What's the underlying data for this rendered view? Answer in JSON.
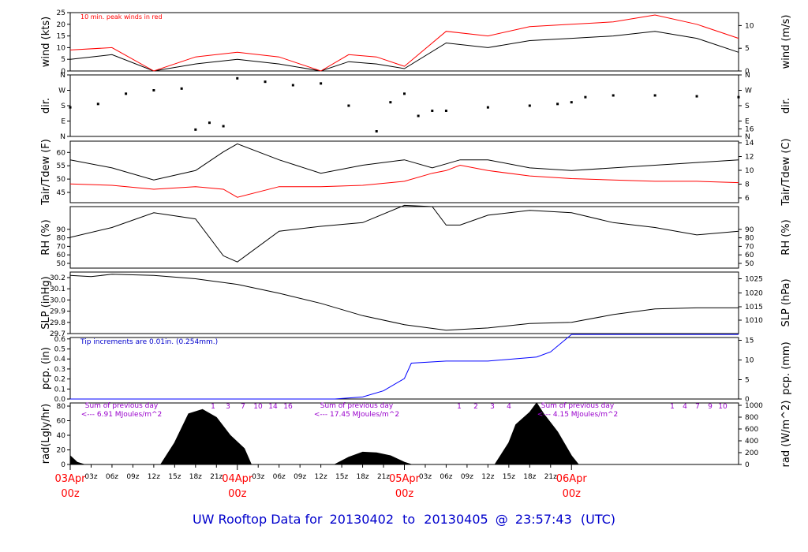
{
  "footer": {
    "prefix": "UW Rooftop Data for",
    "start": "20130402",
    "to": "to",
    "end": "20130405",
    "at": "@",
    "time": "23:57:43",
    "tz": "(UTC)",
    "color": "#0000cc"
  },
  "x_axis": {
    "hour_ticks": [
      "03z",
      "06z",
      "09z",
      "12z",
      "15z",
      "18z",
      "21z",
      "03z",
      "06z",
      "09z",
      "12z",
      "15z",
      "18z",
      "21z",
      "03z",
      "06z",
      "09z",
      "12z",
      "15z",
      "18z",
      "21z"
    ],
    "date_ticks": [
      {
        "date": "03Apr",
        "hour": "00z"
      },
      {
        "date": "04Apr",
        "hour": "00z"
      },
      {
        "date": "05Apr",
        "hour": "00z"
      },
      {
        "date": "06Apr",
        "hour": "00z"
      }
    ],
    "date_color": "#ff0000"
  },
  "chart_data": [
    {
      "id": "wind",
      "type": "line",
      "ylabel_left": "wind (kts)",
      "ylabel_right": "wind (m/s)",
      "ylim": [
        0,
        25
      ],
      "yticks_left": [
        "0",
        "5",
        "10",
        "15",
        "20",
        "25"
      ],
      "ylim_right": [
        0,
        12.86
      ],
      "yticks_right": [
        "0",
        "5",
        "10"
      ],
      "annotation": "10 min. peak winds in red",
      "series": [
        {
          "name": "wind",
          "color": "#000000",
          "x_hours": [
            0,
            6,
            12,
            18,
            24,
            30,
            36,
            40,
            44,
            48,
            54,
            60,
            66,
            72,
            78,
            84,
            90,
            96
          ],
          "values": [
            5,
            7,
            0,
            3,
            5,
            3,
            0,
            4,
            3,
            1,
            12,
            10,
            13,
            14,
            15,
            17,
            14,
            8
          ]
        },
        {
          "name": "peak",
          "color": "#ff0000",
          "x_hours": [
            0,
            6,
            12,
            18,
            24,
            30,
            36,
            40,
            44,
            48,
            54,
            60,
            66,
            72,
            78,
            84,
            90,
            96
          ],
          "values": [
            9,
            10,
            0,
            6,
            8,
            6,
            0,
            7,
            6,
            2,
            17,
            15,
            19,
            20,
            21,
            24,
            20,
            14
          ]
        }
      ]
    },
    {
      "id": "dir",
      "type": "scatter",
      "ylabel_left": "dir.",
      "ylabel_right": "dir.",
      "ylim": [
        0,
        360
      ],
      "yticks_left": [
        "N",
        "E",
        "S",
        "W",
        "N"
      ],
      "yticks_right": [
        "N",
        "E",
        "S",
        "W",
        "N"
      ],
      "series": [
        {
          "name": "direction",
          "color": "#000000",
          "x_hours": [
            0,
            4,
            8,
            12,
            16,
            18,
            20,
            22,
            24,
            28,
            32,
            36,
            40,
            44,
            46,
            48,
            50,
            52,
            54,
            60,
            66,
            70,
            72,
            74,
            78,
            84,
            90,
            96
          ],
          "values": [
            170,
            190,
            250,
            270,
            280,
            40,
            80,
            60,
            340,
            320,
            300,
            310,
            180,
            30,
            200,
            250,
            120,
            150,
            150,
            170,
            180,
            190,
            200,
            230,
            240,
            240,
            235,
            230
          ]
        }
      ]
    },
    {
      "id": "temp",
      "type": "line",
      "ylabel_left": "Tair/Tdew (F)",
      "ylabel_right": "Tair/Tdew (C)",
      "ylim": [
        40,
        63
      ],
      "yticks_left": [
        "45",
        "50",
        "55",
        "60"
      ],
      "yticks_right": [
        "6",
        "8",
        "10",
        "12",
        "14",
        "16"
      ],
      "series": [
        {
          "name": "Tair",
          "color": "#000000",
          "x_hours": [
            0,
            6,
            12,
            18,
            22,
            24,
            30,
            36,
            42,
            48,
            52,
            54,
            56,
            60,
            66,
            72,
            78,
            84,
            90,
            96
          ],
          "values": [
            56,
            53,
            48.5,
            52,
            59,
            62,
            56,
            51,
            54,
            56,
            53,
            54.5,
            56,
            56,
            53,
            52,
            53,
            54,
            55,
            56
          ]
        },
        {
          "name": "Tdew",
          "color": "#ff0000",
          "x_hours": [
            0,
            6,
            12,
            18,
            22,
            24,
            30,
            36,
            42,
            48,
            52,
            54,
            56,
            60,
            66,
            72,
            78,
            84,
            90,
            96
          ],
          "values": [
            47,
            46.5,
            45,
            46,
            45,
            42,
            46,
            46,
            46.5,
            48,
            51,
            52,
            54,
            52,
            50,
            49,
            48.5,
            48,
            48,
            47.5
          ]
        }
      ]
    },
    {
      "id": "rh",
      "type": "line",
      "ylabel_left": "RH (%)",
      "ylabel_right": "RH (%)",
      "ylim": [
        45,
        95
      ],
      "yticks_left": [
        "50",
        "60",
        "70",
        "80",
        "90"
      ],
      "yticks_right": [
        "50",
        "60",
        "70",
        "80",
        "90"
      ],
      "series": [
        {
          "name": "RH",
          "color": "#000000",
          "x_hours": [
            0,
            6,
            12,
            18,
            22,
            24,
            30,
            36,
            42,
            48,
            52,
            54,
            56,
            60,
            66,
            72,
            78,
            84,
            90,
            96
          ],
          "values": [
            70,
            78,
            90,
            85,
            55,
            50,
            75,
            79,
            82,
            96,
            95,
            80,
            80,
            88,
            92,
            90,
            82,
            78,
            72,
            75
          ]
        }
      ]
    },
    {
      "id": "slp",
      "type": "line",
      "ylabel_left": "SLP (inHg)",
      "ylabel_right": "SLP (hPa)",
      "ylim": [
        29.7,
        30.25
      ],
      "yticks_left": [
        "29.7",
        "29.8",
        "29.9",
        "30.0",
        "30.1",
        "30.2"
      ],
      "ylim_right": [
        1005.8,
        1024.4
      ],
      "yticks_right": [
        "1010",
        "1015",
        "1020",
        "1025"
      ],
      "series": [
        {
          "name": "SLP",
          "color": "#000000",
          "x_hours": [
            0,
            3,
            6,
            12,
            18,
            24,
            30,
            36,
            42,
            48,
            54,
            60,
            66,
            72,
            78,
            84,
            90,
            96
          ],
          "values": [
            30.22,
            30.21,
            30.23,
            30.22,
            30.19,
            30.14,
            30.06,
            29.97,
            29.86,
            29.78,
            29.73,
            29.75,
            29.79,
            29.8,
            29.87,
            29.92,
            29.93,
            29.93
          ]
        }
      ]
    },
    {
      "id": "pcp",
      "type": "line",
      "ylabel_left": "pcp. (in)",
      "ylabel_right": "pcp. (mm)",
      "ylim": [
        0,
        0.6
      ],
      "yticks_left": [
        "0.0",
        "0.1",
        "0.2",
        "0.3",
        "0.4",
        "0.5",
        "0.6"
      ],
      "ylim_right": [
        0,
        15.24
      ],
      "yticks_right": [
        "0",
        "5",
        "10",
        "15"
      ],
      "annotation": "Tip increments are 0.01in. (0.254mm.)",
      "series": [
        {
          "name": "precip",
          "color": "#0000ff",
          "x_hours": [
            0,
            38,
            42,
            45,
            48,
            49,
            54,
            60,
            67,
            69,
            72,
            80,
            90,
            96
          ],
          "values": [
            0,
            0,
            0.02,
            0.08,
            0.2,
            0.35,
            0.37,
            0.37,
            0.41,
            0.46,
            0.63,
            0.63,
            0.63,
            0.63
          ]
        }
      ]
    },
    {
      "id": "rad",
      "type": "area",
      "ylabel_left": "rad(Lgly/hr)",
      "ylabel_right": "rad (W/m^2)",
      "ylim": [
        0,
        85
      ],
      "yticks_left": [
        "0",
        "20",
        "40",
        "60",
        "80"
      ],
      "ylim_right": [
        0,
        988
      ],
      "yticks_right": [
        "0",
        "200",
        "400",
        "600",
        "800",
        "1000"
      ],
      "annotations": [
        {
          "line1": "Sum of previous day",
          "line2": "<--- 6.91 MJoules/m^2"
        },
        {
          "line1": "Sum of previous day",
          "line2": "<--- 17.45 MJoules/m^2"
        },
        {
          "line1": "Sum of previous day",
          "line2": "<--- 4.15 MJoules/m^2"
        }
      ],
      "markers_day1": [
        "1",
        "3",
        "7",
        "10",
        "14",
        "16"
      ],
      "markers_day2": [
        "1",
        "2",
        "3",
        "4"
      ],
      "markers_day3": [
        "1",
        "4",
        "7",
        "9",
        "10"
      ],
      "series": [
        {
          "name": "radiation",
          "color": "#000000",
          "x_hours": [
            0,
            1,
            2,
            13,
            15,
            17,
            19,
            21,
            23,
            25,
            26,
            38,
            40,
            42,
            44,
            46,
            48,
            49,
            61,
            63,
            64,
            66,
            67,
            68,
            70,
            72,
            73
          ],
          "values": [
            12,
            3,
            0,
            0,
            30,
            70,
            76,
            65,
            40,
            22,
            0,
            0,
            10,
            17,
            16,
            12,
            3,
            0,
            0,
            30,
            55,
            72,
            85,
            70,
            45,
            12,
            0
          ]
        }
      ]
    }
  ]
}
